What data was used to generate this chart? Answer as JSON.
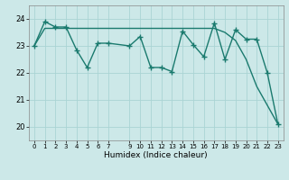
{
  "title": "",
  "xlabel": "Humidex (Indice chaleur)",
  "bg_color": "#cce8e8",
  "line_color": "#1a7a6e",
  "grid_color": "#aad4d4",
  "x_values": [
    0,
    1,
    2,
    3,
    4,
    5,
    6,
    7,
    9,
    10,
    11,
    12,
    13,
    14,
    15,
    16,
    17,
    18,
    19,
    20,
    21,
    22,
    23
  ],
  "y_series1": [
    23.0,
    23.9,
    23.7,
    23.7,
    22.85,
    22.2,
    23.1,
    23.1,
    23.0,
    23.35,
    22.2,
    22.2,
    22.05,
    23.55,
    23.05,
    22.6,
    23.85,
    22.5,
    23.6,
    23.25,
    23.25,
    22.0,
    20.1
  ],
  "y_trend": [
    23.0,
    23.65,
    23.65,
    23.65,
    23.65,
    23.65,
    23.65,
    23.65,
    23.65,
    23.65,
    23.65,
    23.65,
    23.65,
    23.65,
    23.65,
    23.65,
    23.65,
    23.5,
    23.2,
    22.5,
    21.5,
    20.8,
    20.1
  ],
  "ylim": [
    19.5,
    24.5
  ],
  "yticks": [
    20,
    21,
    22,
    23,
    24
  ],
  "xlim": [
    -0.5,
    23.5
  ],
  "marker_size": 4,
  "linewidth": 1.0
}
